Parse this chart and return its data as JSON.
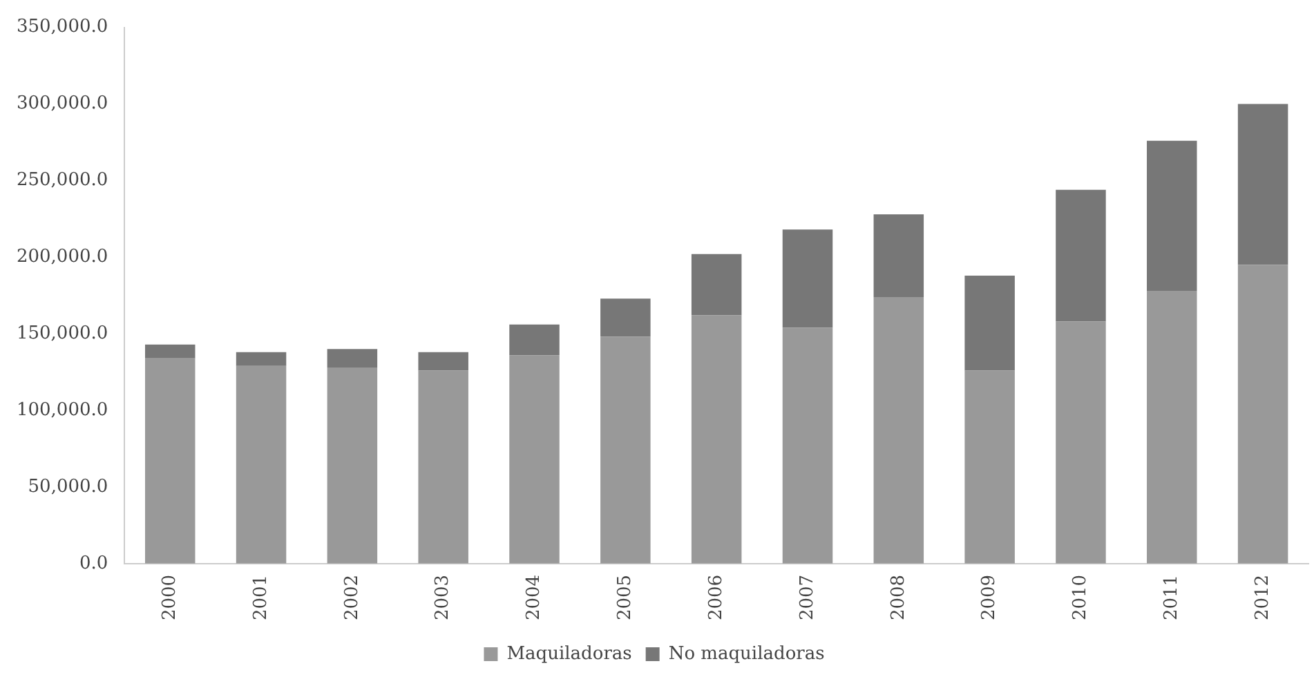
{
  "chart_data": {
    "type": "bar",
    "stacked": true,
    "categories": [
      "2000",
      "2001",
      "2002",
      "2003",
      "2004",
      "2005",
      "2006",
      "2007",
      "2008",
      "2009",
      "2010",
      "2011",
      "2012"
    ],
    "series": [
      {
        "name": "Maquiladoras",
        "color": "#999999",
        "values": [
          134000,
          129000,
          128000,
          126000,
          136000,
          148000,
          162000,
          154000,
          174000,
          126000,
          158000,
          178000,
          195000
        ]
      },
      {
        "name": "No maquiladoras",
        "color": "#777777",
        "values": [
          9000,
          9000,
          12000,
          12000,
          20000,
          25000,
          40000,
          64000,
          54000,
          62000,
          86000,
          98000,
          105000
        ]
      }
    ],
    "ylim": [
      0,
      350000
    ],
    "yticks": [
      {
        "value": 0,
        "label": "0.0"
      },
      {
        "value": 50000,
        "label": "50,000.0"
      },
      {
        "value": 100000,
        "label": "100,000.0"
      },
      {
        "value": 150000,
        "label": "150,000.0"
      },
      {
        "value": 200000,
        "label": "200,000.0"
      },
      {
        "value": 250000,
        "label": "250,000.0"
      },
      {
        "value": 300000,
        "label": "300,000.0"
      },
      {
        "value": 350000,
        "label": "350,000.0"
      }
    ],
    "grid": false,
    "legend": "bottom"
  }
}
